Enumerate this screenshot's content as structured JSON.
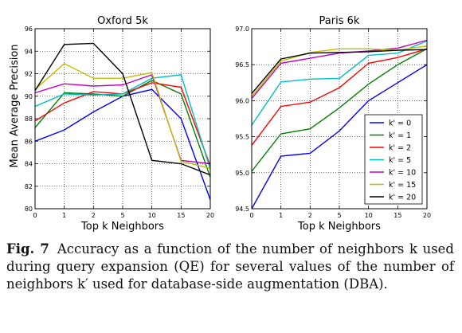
{
  "figure": {
    "ylabel": "Mean Average Precision",
    "legend_title_prefix": "k'",
    "series_colors": [
      "#0000ff",
      "#008000",
      "#ff0000",
      "#00bfbf",
      "#bf00bf",
      "#bfbf00",
      "#000000"
    ]
  },
  "chart_data": [
    {
      "type": "line",
      "title": "Oxford 5k",
      "xlabel": "Top k Neighbors",
      "ylabel": "Mean Average Precision",
      "categories": [
        "0",
        "1",
        "2",
        "5",
        "10",
        "15",
        "20"
      ],
      "ylim": [
        80,
        96
      ],
      "yticks": [
        "80",
        "82",
        "84",
        "86",
        "88",
        "90",
        "92",
        "94",
        "96"
      ],
      "grid": true,
      "series": [
        {
          "name": "k' = 0",
          "values": [
            86.0,
            87.0,
            88.6,
            90.0,
            90.6,
            88.0,
            80.8
          ]
        },
        {
          "name": "k' = 1",
          "values": [
            87.2,
            90.3,
            90.2,
            90.0,
            91.4,
            90.2,
            82.8
          ]
        },
        {
          "name": "k' = 2",
          "values": [
            87.8,
            89.4,
            90.4,
            90.2,
            91.2,
            90.8,
            83.8
          ]
        },
        {
          "name": "k' = 5",
          "values": [
            89.1,
            90.2,
            90.1,
            90.2,
            91.6,
            91.9,
            83.5
          ]
        },
        {
          "name": "k' = 10",
          "values": [
            90.3,
            91.1,
            90.9,
            91.0,
            91.9,
            84.3,
            84.0
          ]
        },
        {
          "name": "k' = 15",
          "values": [
            90.6,
            92.9,
            91.6,
            91.6,
            92.1,
            84.2,
            83.6
          ]
        },
        {
          "name": "k' = 20",
          "values": [
            90.5,
            94.6,
            94.7,
            92.0,
            84.3,
            84.0,
            83.0
          ]
        }
      ]
    },
    {
      "type": "line",
      "title": "Paris 6k",
      "xlabel": "Top k Neighbors",
      "categories": [
        "0",
        "1",
        "2",
        "5",
        "10",
        "15",
        "20"
      ],
      "ylim": [
        94.5,
        97.0
      ],
      "yticks": [
        "94.5",
        "95.0",
        "95.5",
        "96.0",
        "96.5",
        "97.0"
      ],
      "grid": true,
      "legend": "lower-right",
      "series": [
        {
          "name": "k' = 0",
          "values": [
            94.5,
            95.23,
            95.27,
            95.58,
            96.0,
            96.25,
            96.5
          ]
        },
        {
          "name": "k' = 1",
          "values": [
            95.02,
            95.54,
            95.61,
            95.9,
            96.23,
            96.5,
            96.72
          ]
        },
        {
          "name": "k' = 2",
          "values": [
            95.38,
            95.92,
            95.98,
            96.18,
            96.52,
            96.6,
            96.72
          ]
        },
        {
          "name": "k' = 5",
          "values": [
            95.66,
            96.26,
            96.3,
            96.31,
            96.63,
            96.66,
            96.83
          ]
        },
        {
          "name": "k' = 10",
          "values": [
            96.03,
            96.52,
            96.59,
            96.66,
            96.69,
            96.73,
            96.84
          ]
        },
        {
          "name": "k' = 15",
          "values": [
            96.06,
            96.55,
            96.67,
            96.72,
            96.72,
            96.7,
            96.76
          ]
        },
        {
          "name": "k' = 20",
          "values": [
            96.1,
            96.58,
            96.66,
            96.67,
            96.68,
            96.7,
            96.71
          ]
        }
      ]
    }
  ],
  "caption": {
    "label": "Fig. 7",
    "text": "Accuracy as a function of the number of neighbors k used during query expansion (QE) for several values of the number of neighbors k′ used for database-side augmentation (DBA)."
  }
}
